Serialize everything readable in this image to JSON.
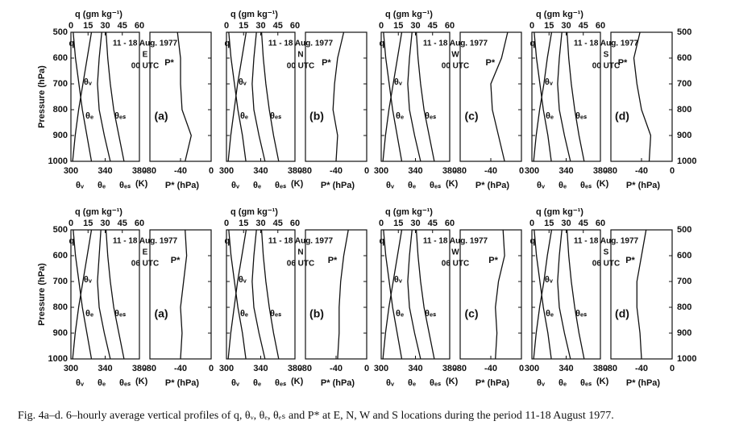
{
  "chart_data": [
    {
      "type": "line",
      "title": "11 - 18 Aug. 1977",
      "station": "E",
      "time": "00 UTC",
      "panel": "(a)",
      "color": "#111",
      "y": [
        500,
        600,
        700,
        800,
        900,
        1000
      ],
      "ylim": [
        1000,
        500
      ],
      "yticks": [
        500,
        600,
        700,
        800,
        900,
        1000
      ],
      "ytick_labels": "left",
      "ylabel": "Pressure (hPa)",
      "xlim": [
        300,
        380
      ],
      "xticks": [
        300,
        340,
        380
      ],
      "xlabel": "(K)",
      "qlabel": "q (gm kg⁻¹)",
      "qlim": [
        0,
        60
      ],
      "qticks": [
        0,
        15,
        30,
        45,
        60
      ],
      "plim": [
        -80,
        0
      ],
      "pticks": [
        -80,
        -40,
        0
      ],
      "plabel": "P* (hPa)",
      "series": [
        {
          "name": "q",
          "axis": "q",
          "values": [
            2,
            4,
            7,
            10,
            14,
            18
          ]
        },
        {
          "name": "θᵥ",
          "values": [
            324,
            319,
            314,
            309,
            305,
            302
          ]
        },
        {
          "name": "θₑ",
          "values": [
            336,
            333,
            331,
            333,
            339,
            346
          ]
        },
        {
          "name": "θₑₛ",
          "values": [
            341,
            343,
            346,
            350,
            356,
            362
          ]
        },
        {
          "name": "P*",
          "axis": "p",
          "values": [
            -44,
            -40,
            -40,
            -38,
            -26,
            -34
          ]
        }
      ]
    },
    {
      "type": "line",
      "title": "11 - 18 Aug. 1977",
      "station": "N",
      "time": "00 UTC",
      "panel": "(b)",
      "color": "#111",
      "y": [
        500,
        600,
        700,
        800,
        900,
        1000
      ],
      "ylim": [
        1000,
        500
      ],
      "yticks": [
        500,
        600,
        700,
        800,
        900,
        1000
      ],
      "ytick_labels": "none",
      "xlim": [
        300,
        380
      ],
      "xticks": [
        300,
        340,
        380
      ],
      "xlabel": "(K)",
      "qlabel": "q (gm kg⁻¹)",
      "qlim": [
        0,
        60
      ],
      "qticks": [
        0,
        15,
        30,
        45,
        60
      ],
      "plim": [
        -80,
        0
      ],
      "pticks": [
        -80,
        -40,
        0
      ],
      "plabel": "P* (hPa)",
      "series": [
        {
          "name": "q",
          "axis": "q",
          "values": [
            2,
            4,
            7,
            10,
            14,
            17
          ]
        },
        {
          "name": "θᵥ",
          "values": [
            323,
            318,
            313,
            309,
            305,
            302
          ]
        },
        {
          "name": "θₑ",
          "values": [
            335,
            332,
            330,
            332,
            338,
            345
          ]
        },
        {
          "name": "θₑₛ",
          "values": [
            341,
            343,
            346,
            350,
            355,
            361
          ]
        },
        {
          "name": "P*",
          "axis": "p",
          "values": [
            -30,
            -38,
            -42,
            -44,
            -38,
            -40
          ]
        }
      ]
    },
    {
      "type": "line",
      "title": "11 - 18 Aug. 1977",
      "station": "W",
      "time": "00 UTC",
      "panel": "(c)",
      "color": "#111",
      "y": [
        500,
        600,
        700,
        800,
        900,
        1000
      ],
      "ylim": [
        1000,
        500
      ],
      "yticks": [
        500,
        600,
        700,
        800,
        900,
        1000
      ],
      "ytick_labels": "none",
      "xlim": [
        300,
        380
      ],
      "xticks": [
        300,
        340,
        380
      ],
      "xlabel": "(K)",
      "qlabel": "q (gm kg⁻¹)",
      "qlim": [
        0,
        60
      ],
      "qticks": [
        0,
        15,
        30,
        45,
        60
      ],
      "plim": [
        -80,
        0
      ],
      "pticks": [
        -80,
        -40,
        0
      ],
      "plabel": "P* (hPa)",
      "series": [
        {
          "name": "q",
          "axis": "q",
          "values": [
            2,
            4,
            7,
            10,
            14,
            18
          ]
        },
        {
          "name": "θᵥ",
          "values": [
            324,
            319,
            314,
            309,
            305,
            302
          ]
        },
        {
          "name": "θₑ",
          "values": [
            336,
            333,
            331,
            333,
            339,
            346
          ]
        },
        {
          "name": "θₑₛ",
          "values": [
            341,
            343,
            346,
            350,
            356,
            362
          ]
        },
        {
          "name": "P*",
          "axis": "p",
          "values": [
            -18,
            -26,
            -40,
            -38,
            -30,
            -22
          ]
        }
      ]
    },
    {
      "type": "line",
      "title": "11 - 18 Aug. 1977",
      "station": "S",
      "time": "00 UTC",
      "panel": "(d)",
      "color": "#111",
      "y": [
        500,
        600,
        700,
        800,
        900,
        1000
      ],
      "ylim": [
        1000,
        500
      ],
      "yticks": [
        500,
        600,
        700,
        800,
        900,
        1000
      ],
      "ytick_labels": "right",
      "xlim": [
        300,
        380
      ],
      "xticks": [
        300,
        340,
        380
      ],
      "xlabel": "(K)",
      "qlabel": "q (gm kg⁻¹)",
      "qlim": [
        0,
        60
      ],
      "qticks": [
        0,
        15,
        30,
        45,
        60
      ],
      "plim": [
        -80,
        0
      ],
      "pticks": [
        -80,
        -40,
        0
      ],
      "plabel": "P* (hPa)",
      "series": [
        {
          "name": "q",
          "axis": "q",
          "values": [
            2,
            4,
            7,
            10,
            14,
            17
          ]
        },
        {
          "name": "θᵥ",
          "values": [
            323,
            318,
            314,
            309,
            305,
            302
          ]
        },
        {
          "name": "θₑ",
          "values": [
            335,
            332,
            330,
            332,
            338,
            345
          ]
        },
        {
          "name": "θₑₛ",
          "values": [
            341,
            343,
            346,
            350,
            355,
            361
          ]
        },
        {
          "name": "P*",
          "axis": "p",
          "values": [
            -42,
            -50,
            -46,
            -40,
            -28,
            -30
          ]
        }
      ]
    },
    {
      "type": "line",
      "title": "11 - 18 Aug. 1977",
      "station": "E",
      "time": "06 UTC",
      "panel": "(a)",
      "color": "#111",
      "y": [
        500,
        600,
        700,
        800,
        900,
        1000
      ],
      "ylim": [
        1000,
        500
      ],
      "yticks": [
        500,
        600,
        700,
        800,
        900,
        1000
      ],
      "ytick_labels": "left",
      "ylabel": "Pressure (hPa)",
      "xlim": [
        300,
        380
      ],
      "xticks": [
        300,
        340,
        380
      ],
      "xlabel": "(K)",
      "qlabel": "q (gm kg⁻¹)",
      "qlim": [
        0,
        60
      ],
      "qticks": [
        0,
        15,
        30,
        45,
        60
      ],
      "plim": [
        -80,
        0
      ],
      "pticks": [
        -80,
        -40,
        0
      ],
      "plabel": "P* (hPa)",
      "series": [
        {
          "name": "q",
          "axis": "q",
          "values": [
            2,
            4,
            7,
            10,
            14,
            18
          ]
        },
        {
          "name": "θᵥ",
          "values": [
            324,
            319,
            314,
            309,
            305,
            302
          ]
        },
        {
          "name": "θₑ",
          "values": [
            335,
            333,
            331,
            333,
            339,
            346
          ]
        },
        {
          "name": "θₑₛ",
          "values": [
            341,
            343,
            346,
            350,
            356,
            362
          ]
        },
        {
          "name": "P*",
          "axis": "p",
          "values": [
            -34,
            -32,
            -36,
            -40,
            -38,
            -40
          ]
        }
      ]
    },
    {
      "type": "line",
      "title": "11 - 18 Aug. 1977",
      "station": "N",
      "time": "06 UTC",
      "panel": "(b)",
      "color": "#111",
      "y": [
        500,
        600,
        700,
        800,
        900,
        1000
      ],
      "ylim": [
        1000,
        500
      ],
      "yticks": [
        500,
        600,
        700,
        800,
        900,
        1000
      ],
      "ytick_labels": "none",
      "xlim": [
        300,
        380
      ],
      "xticks": [
        300,
        340,
        380
      ],
      "xlabel": "(K)",
      "qlabel": "q (gm kg⁻¹)",
      "qlim": [
        0,
        60
      ],
      "qticks": [
        0,
        15,
        30,
        45,
        60
      ],
      "plim": [
        -80,
        0
      ],
      "pticks": [
        -80,
        -40,
        0
      ],
      "plabel": "P* (hPa)",
      "series": [
        {
          "name": "q",
          "axis": "q",
          "values": [
            2,
            4,
            7,
            10,
            14,
            17
          ]
        },
        {
          "name": "θᵥ",
          "values": [
            323,
            318,
            313,
            309,
            305,
            302
          ]
        },
        {
          "name": "θₑ",
          "values": [
            335,
            332,
            330,
            332,
            338,
            345
          ]
        },
        {
          "name": "θₑₛ",
          "values": [
            341,
            343,
            346,
            350,
            355,
            361
          ]
        },
        {
          "name": "P*",
          "axis": "p",
          "values": [
            -24,
            -30,
            -34,
            -36,
            -36,
            -38
          ]
        }
      ]
    },
    {
      "type": "line",
      "title": "11 - 18 Aug. 1977",
      "station": "W",
      "time": "06 UTC",
      "panel": "(c)",
      "color": "#111",
      "y": [
        500,
        600,
        700,
        800,
        900,
        1000
      ],
      "ylim": [
        1000,
        500
      ],
      "yticks": [
        500,
        600,
        700,
        800,
        900,
        1000
      ],
      "ytick_labels": "none",
      "xlim": [
        300,
        380
      ],
      "xticks": [
        300,
        340,
        380
      ],
      "xlabel": "(K)",
      "qlabel": "q (gm kg⁻¹)",
      "qlim": [
        0,
        60
      ],
      "qticks": [
        0,
        15,
        30,
        45,
        60
      ],
      "plim": [
        -80,
        0
      ],
      "pticks": [
        -80,
        -40,
        0
      ],
      "plabel": "P* (hPa)",
      "series": [
        {
          "name": "q",
          "axis": "q",
          "values": [
            2,
            4,
            7,
            10,
            14,
            18
          ]
        },
        {
          "name": "θᵥ",
          "values": [
            324,
            319,
            314,
            309,
            305,
            302
          ]
        },
        {
          "name": "θₑ",
          "values": [
            336,
            333,
            331,
            333,
            339,
            346
          ]
        },
        {
          "name": "θₑₛ",
          "values": [
            341,
            343,
            346,
            350,
            356,
            362
          ]
        },
        {
          "name": "P*",
          "axis": "p",
          "values": [
            -24,
            -22,
            -30,
            -34,
            -32,
            -34
          ]
        }
      ]
    },
    {
      "type": "line",
      "title": "11 - 18 Aug. 1977",
      "station": "S",
      "time": "06 UTC",
      "panel": "(d)",
      "color": "#111",
      "y": [
        500,
        600,
        700,
        800,
        900,
        1000
      ],
      "ylim": [
        1000,
        500
      ],
      "yticks": [
        500,
        600,
        700,
        800,
        900,
        1000
      ],
      "ytick_labels": "right",
      "xlim": [
        300,
        380
      ],
      "xticks": [
        300,
        340,
        380
      ],
      "xlabel": "(K)",
      "qlabel": "q (gm kg⁻¹)",
      "qlim": [
        0,
        60
      ],
      "qticks": [
        0,
        15,
        30,
        45,
        60
      ],
      "plim": [
        -80,
        0
      ],
      "pticks": [
        -80,
        -40,
        0
      ],
      "plabel": "P* (hPa)",
      "series": [
        {
          "name": "q",
          "axis": "q",
          "values": [
            2,
            4,
            7,
            10,
            14,
            17
          ]
        },
        {
          "name": "θᵥ",
          "values": [
            323,
            318,
            314,
            309,
            305,
            302
          ]
        },
        {
          "name": "θₑ",
          "values": [
            335,
            332,
            330,
            332,
            338,
            345
          ]
        },
        {
          "name": "θₑₛ",
          "values": [
            341,
            343,
            346,
            350,
            355,
            361
          ]
        },
        {
          "name": "P*",
          "axis": "p",
          "values": [
            -34,
            -40,
            -46,
            -46,
            -42,
            -40
          ]
        }
      ]
    }
  ],
  "caption": "Fig. 4a–d. 6–hourly average vertical profiles of q, θᵥ, θₑ, θₑₛ and P* at E, N, W and S locations during the period 11-18 August 1977."
}
